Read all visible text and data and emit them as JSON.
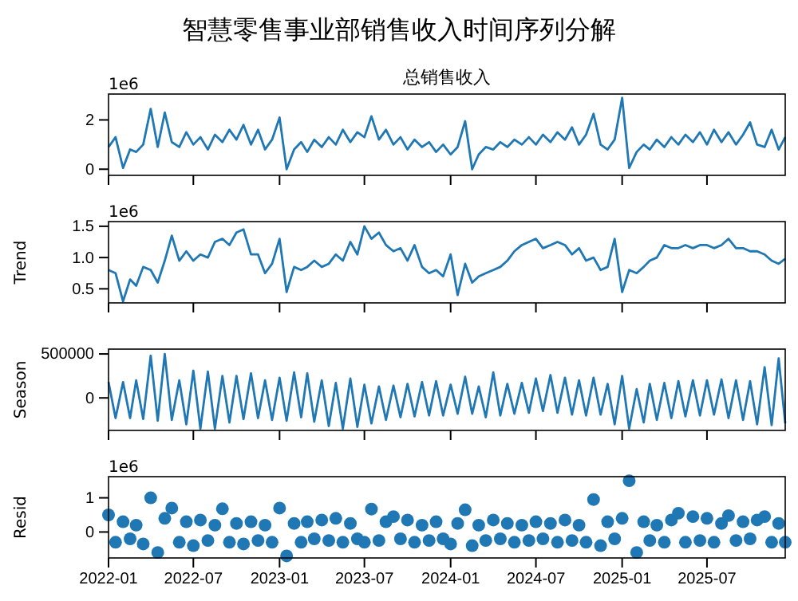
{
  "chart_data": [
    {
      "type": "line",
      "title": "智慧零售事业部销售收入时间序列分解",
      "subtitle": "总销售收入",
      "annotations": [
        "1e6"
      ],
      "color": "#1f77b4",
      "tick_labels": "y",
      "xlim": [
        "2022-01-01",
        "2025-12-15"
      ],
      "xticks": [
        "2022-01",
        "2022-07",
        "2023-01",
        "2023-07",
        "2024-01",
        "2024-07",
        "2025-01",
        "2025-07"
      ],
      "ylim": [
        -0.25,
        3.05
      ],
      "yticks": [
        0,
        2
      ],
      "x": [
        "2022-01-01",
        "2022-01-16",
        "2022-02-01",
        "2022-02-16",
        "2022-03-01",
        "2022-03-16",
        "2022-04-01",
        "2022-04-16",
        "2022-05-01",
        "2022-05-16",
        "2022-06-01",
        "2022-06-16",
        "2022-07-01",
        "2022-07-16",
        "2022-08-01",
        "2022-08-16",
        "2022-09-01",
        "2022-09-16",
        "2022-10-01",
        "2022-10-16",
        "2022-11-01",
        "2022-11-16",
        "2022-12-01",
        "2022-12-16",
        "2023-01-01",
        "2023-01-16",
        "2023-02-01",
        "2023-02-16",
        "2023-03-01",
        "2023-03-16",
        "2023-04-01",
        "2023-04-16",
        "2023-05-01",
        "2023-05-16",
        "2023-06-01",
        "2023-06-16",
        "2023-07-01",
        "2023-07-16",
        "2023-08-01",
        "2023-08-16",
        "2023-09-01",
        "2023-09-16",
        "2023-10-01",
        "2023-10-16",
        "2023-11-01",
        "2023-11-16",
        "2023-12-01",
        "2023-12-16",
        "2024-01-01",
        "2024-01-16",
        "2024-02-01",
        "2024-02-16",
        "2024-03-01",
        "2024-03-16",
        "2024-04-01",
        "2024-04-16",
        "2024-05-01",
        "2024-05-16",
        "2024-06-01",
        "2024-06-16",
        "2024-07-01",
        "2024-07-16",
        "2024-08-01",
        "2024-08-16",
        "2024-09-01",
        "2024-09-16",
        "2024-10-01",
        "2024-10-16",
        "2024-11-01",
        "2024-11-16",
        "2024-12-01",
        "2024-12-16",
        "2025-01-01",
        "2025-01-16",
        "2025-02-01",
        "2025-02-16",
        "2025-03-01",
        "2025-03-16",
        "2025-04-01",
        "2025-04-16",
        "2025-05-01",
        "2025-05-16",
        "2025-06-01",
        "2025-06-16",
        "2025-07-01",
        "2025-07-16",
        "2025-08-01",
        "2025-08-16",
        "2025-09-01",
        "2025-09-16",
        "2025-10-01",
        "2025-10-16",
        "2025-11-01",
        "2025-11-16",
        "2025-12-01",
        "2025-12-15"
      ],
      "values": [
        0.9,
        1.3,
        0.05,
        0.8,
        0.7,
        1.0,
        2.45,
        0.9,
        2.3,
        1.1,
        0.9,
        1.5,
        1.0,
        1.3,
        0.8,
        1.4,
        1.1,
        1.6,
        1.2,
        1.8,
        1.0,
        1.6,
        0.8,
        1.2,
        2.1,
        0,
        0.8,
        1.1,
        0.7,
        1.2,
        0.9,
        1.3,
        1.0,
        1.6,
        1.1,
        1.5,
        1.3,
        2.15,
        1.2,
        1.6,
        1.0,
        1.3,
        0.8,
        1.2,
        0.9,
        1.1,
        0.7,
        1.0,
        0.6,
        0.9,
        1.95,
        0,
        0.6,
        0.9,
        0.8,
        1.1,
        0.9,
        1.2,
        1.0,
        1.3,
        1.0,
        1.4,
        1.1,
        1.5,
        1.2,
        1.7,
        1.0,
        1.4,
        2.25,
        1.0,
        0.8,
        1.2,
        2.9,
        0.05,
        0.7,
        1.0,
        0.8,
        1.2,
        0.9,
        1.3,
        1.0,
        1.4,
        1.1,
        1.5,
        1.0,
        1.6,
        1.1,
        1.5,
        1.0,
        1.4,
        1.9,
        1.0,
        0.9,
        1.6,
        0.8,
        1.3
      ]
    },
    {
      "type": "line",
      "ylabel": "Trend",
      "annotations": [
        "1e6"
      ],
      "color": "#1f77b4",
      "tick_labels": "y",
      "xlim": [
        "2022-01-01",
        "2025-12-15"
      ],
      "xticks": [
        "2022-01",
        "2022-07",
        "2023-01",
        "2023-07",
        "2024-01",
        "2024-07",
        "2025-01",
        "2025-07"
      ],
      "ylim": [
        0.275,
        1.575
      ],
      "yticks": [
        0.5,
        {
          "value": 1,
          "label": "1.0"
        },
        1.5
      ],
      "x": [
        "2022-01-01",
        "2022-01-16",
        "2022-02-01",
        "2022-02-16",
        "2022-03-01",
        "2022-03-16",
        "2022-04-01",
        "2022-04-16",
        "2022-05-01",
        "2022-05-16",
        "2022-06-01",
        "2022-06-16",
        "2022-07-01",
        "2022-07-16",
        "2022-08-01",
        "2022-08-16",
        "2022-09-01",
        "2022-09-16",
        "2022-10-01",
        "2022-10-16",
        "2022-11-01",
        "2022-11-16",
        "2022-12-01",
        "2022-12-16",
        "2023-01-01",
        "2023-01-16",
        "2023-02-01",
        "2023-02-16",
        "2023-03-01",
        "2023-03-16",
        "2023-04-01",
        "2023-04-16",
        "2023-05-01",
        "2023-05-16",
        "2023-06-01",
        "2023-06-16",
        "2023-07-01",
        "2023-07-16",
        "2023-08-01",
        "2023-08-16",
        "2023-09-01",
        "2023-09-16",
        "2023-10-01",
        "2023-10-16",
        "2023-11-01",
        "2023-11-16",
        "2023-12-01",
        "2023-12-16",
        "2024-01-01",
        "2024-01-16",
        "2024-02-01",
        "2024-02-16",
        "2024-03-01",
        "2024-03-16",
        "2024-04-01",
        "2024-04-16",
        "2024-05-01",
        "2024-05-16",
        "2024-06-01",
        "2024-06-16",
        "2024-07-01",
        "2024-07-16",
        "2024-08-01",
        "2024-08-16",
        "2024-09-01",
        "2024-09-16",
        "2024-10-01",
        "2024-10-16",
        "2024-11-01",
        "2024-11-16",
        "2024-12-01",
        "2024-12-16",
        "2025-01-01",
        "2025-01-16",
        "2025-02-01",
        "2025-02-16",
        "2025-03-01",
        "2025-03-16",
        "2025-04-01",
        "2025-04-16",
        "2025-05-01",
        "2025-05-16",
        "2025-06-01",
        "2025-06-16",
        "2025-07-01",
        "2025-07-16",
        "2025-08-01",
        "2025-08-16",
        "2025-09-01",
        "2025-09-16",
        "2025-10-01",
        "2025-10-16",
        "2025-11-01",
        "2025-11-16",
        "2025-12-01",
        "2025-12-15"
      ],
      "values": [
        0.8,
        0.75,
        0.3,
        0.65,
        0.55,
        0.85,
        0.8,
        0.6,
        0.95,
        1.35,
        0.95,
        1.1,
        0.95,
        1.05,
        1.0,
        1.25,
        1.3,
        1.2,
        1.4,
        1.45,
        1.05,
        1.05,
        0.75,
        0.9,
        1.3,
        0.45,
        0.85,
        0.8,
        0.85,
        0.95,
        0.85,
        0.9,
        1.05,
        0.95,
        1.25,
        1.05,
        1.5,
        1.3,
        1.4,
        1.2,
        1.1,
        1.15,
        0.95,
        1.2,
        0.85,
        0.75,
        0.8,
        0.7,
        1.05,
        0.4,
        0.9,
        0.6,
        0.7,
        0.75,
        0.8,
        0.85,
        0.95,
        1.1,
        1.2,
        1.25,
        1.3,
        1.15,
        1.2,
        1.25,
        1.2,
        1.05,
        1.15,
        0.95,
        1.0,
        0.8,
        0.85,
        1.3,
        0.45,
        0.8,
        0.75,
        0.85,
        0.95,
        1.0,
        1.2,
        1.15,
        1.15,
        1.2,
        1.15,
        1.2,
        1.2,
        1.15,
        1.2,
        1.3,
        1.15,
        1.15,
        1.1,
        1.1,
        1.05,
        0.95,
        0.9,
        0.98
      ]
    },
    {
      "type": "line",
      "ylabel": "Season",
      "color": "#1f77b4",
      "tick_labels": "y",
      "xlim": [
        "2022-01-01",
        "2025-12-15"
      ],
      "xticks": [
        "2022-01",
        "2022-07",
        "2023-01",
        "2023-07",
        "2024-01",
        "2024-07",
        "2025-01",
        "2025-07"
      ],
      "ylim": [
        -370000,
        555000
      ],
      "yticks": [
        0,
        500000
      ],
      "x": [
        "2022-01-01",
        "2022-01-16",
        "2022-02-01",
        "2022-02-16",
        "2022-03-01",
        "2022-03-16",
        "2022-04-01",
        "2022-04-16",
        "2022-05-01",
        "2022-05-16",
        "2022-06-01",
        "2022-06-16",
        "2022-07-01",
        "2022-07-16",
        "2022-08-01",
        "2022-08-16",
        "2022-09-01",
        "2022-09-16",
        "2022-10-01",
        "2022-10-16",
        "2022-11-01",
        "2022-11-16",
        "2022-12-01",
        "2022-12-16",
        "2023-01-01",
        "2023-01-16",
        "2023-02-01",
        "2023-02-16",
        "2023-03-01",
        "2023-03-16",
        "2023-04-01",
        "2023-04-16",
        "2023-05-01",
        "2023-05-16",
        "2023-06-01",
        "2023-06-16",
        "2023-07-01",
        "2023-07-16",
        "2023-08-01",
        "2023-08-16",
        "2023-09-01",
        "2023-09-16",
        "2023-10-01",
        "2023-10-16",
        "2023-11-01",
        "2023-11-16",
        "2023-12-01",
        "2023-12-16",
        "2024-01-01",
        "2024-01-16",
        "2024-02-01",
        "2024-02-16",
        "2024-03-01",
        "2024-03-16",
        "2024-04-01",
        "2024-04-16",
        "2024-05-01",
        "2024-05-16",
        "2024-06-01",
        "2024-06-16",
        "2024-07-01",
        "2024-07-16",
        "2024-08-01",
        "2024-08-16",
        "2024-09-01",
        "2024-09-16",
        "2024-10-01",
        "2024-10-16",
        "2024-11-01",
        "2024-11-16",
        "2024-12-01",
        "2024-12-16",
        "2025-01-01",
        "2025-01-16",
        "2025-02-01",
        "2025-02-16",
        "2025-03-01",
        "2025-03-16",
        "2025-04-01",
        "2025-04-16",
        "2025-05-01",
        "2025-05-16",
        "2025-06-01",
        "2025-06-16",
        "2025-07-01",
        "2025-07-16",
        "2025-08-01",
        "2025-08-16",
        "2025-09-01",
        "2025-09-16",
        "2025-10-01",
        "2025-10-16",
        "2025-11-01",
        "2025-11-16",
        "2025-12-01",
        "2025-12-15"
      ],
      "values": [
        180000,
        -230000,
        180000,
        -230000,
        200000,
        -240000,
        480000,
        -260000,
        500000,
        -250000,
        200000,
        -300000,
        310000,
        -350000,
        300000,
        -350000,
        250000,
        -280000,
        250000,
        -240000,
        280000,
        -230000,
        200000,
        -250000,
        230000,
        -260000,
        290000,
        -220000,
        280000,
        -270000,
        200000,
        -320000,
        170000,
        -350000,
        220000,
        -330000,
        150000,
        -290000,
        130000,
        -250000,
        140000,
        -220000,
        160000,
        -210000,
        180000,
        -200000,
        190000,
        -200000,
        150000,
        -180000,
        240000,
        -180000,
        130000,
        -220000,
        290000,
        -200000,
        160000,
        -180000,
        170000,
        -170000,
        220000,
        -150000,
        260000,
        -170000,
        230000,
        -190000,
        200000,
        -200000,
        230000,
        -190000,
        160000,
        -300000,
        250000,
        -350000,
        100000,
        -280000,
        160000,
        -250000,
        170000,
        -230000,
        190000,
        -210000,
        200000,
        -200000,
        200000,
        -190000,
        210000,
        -230000,
        200000,
        -250000,
        190000,
        -300000,
        350000,
        -310000,
        450000,
        -290000
      ]
    },
    {
      "type": "scatter",
      "ylabel": "Resid",
      "annotations": [
        "1e6"
      ],
      "color": "#1f77b4",
      "marker": "circle",
      "xlim": [
        "2022-01-01",
        "2025-12-15"
      ],
      "xticks": [
        "2022-01",
        "2022-07",
        "2023-01",
        "2023-07",
        "2024-01",
        "2024-07",
        "2025-01",
        "2025-07"
      ],
      "ylim": [
        -0.76,
        1.62
      ],
      "yticks": [
        0,
        1
      ],
      "x": [
        "2022-01-01",
        "2022-01-16",
        "2022-02-01",
        "2022-02-16",
        "2022-03-01",
        "2022-03-16",
        "2022-04-01",
        "2022-04-16",
        "2022-05-01",
        "2022-05-16",
        "2022-06-01",
        "2022-06-16",
        "2022-07-01",
        "2022-07-16",
        "2022-08-01",
        "2022-08-16",
        "2022-09-01",
        "2022-09-16",
        "2022-10-01",
        "2022-10-16",
        "2022-11-01",
        "2022-11-16",
        "2022-12-01",
        "2022-12-16",
        "2023-01-01",
        "2023-01-16",
        "2023-02-01",
        "2023-02-16",
        "2023-03-01",
        "2023-03-16",
        "2023-04-01",
        "2023-04-16",
        "2023-05-01",
        "2023-05-16",
        "2023-06-01",
        "2023-06-16",
        "2023-07-01",
        "2023-07-16",
        "2023-08-01",
        "2023-08-16",
        "2023-09-01",
        "2023-09-16",
        "2023-10-01",
        "2023-10-16",
        "2023-11-01",
        "2023-11-16",
        "2023-12-01",
        "2023-12-16",
        "2024-01-01",
        "2024-01-16",
        "2024-02-01",
        "2024-02-16",
        "2024-03-01",
        "2024-03-16",
        "2024-04-01",
        "2024-04-16",
        "2024-05-01",
        "2024-05-16",
        "2024-06-01",
        "2024-06-16",
        "2024-07-01",
        "2024-07-16",
        "2024-08-01",
        "2024-08-16",
        "2024-09-01",
        "2024-09-16",
        "2024-10-01",
        "2024-10-16",
        "2024-11-01",
        "2024-11-16",
        "2024-12-01",
        "2024-12-16",
        "2025-01-01",
        "2025-01-16",
        "2025-02-01",
        "2025-02-16",
        "2025-03-01",
        "2025-03-16",
        "2025-04-01",
        "2025-04-16",
        "2025-05-01",
        "2025-05-16",
        "2025-06-01",
        "2025-06-16",
        "2025-07-01",
        "2025-07-16",
        "2025-08-01",
        "2025-08-16",
        "2025-09-01",
        "2025-09-16",
        "2025-10-01",
        "2025-10-16",
        "2025-11-01",
        "2025-11-16",
        "2025-12-01",
        "2025-12-15"
      ],
      "values": [
        0.5,
        -0.3,
        0.3,
        -0.2,
        0.2,
        -0.35,
        1.0,
        -0.6,
        0.4,
        0.7,
        -0.3,
        0.3,
        -0.4,
        0.35,
        -0.25,
        0.2,
        0.68,
        -0.3,
        0.25,
        -0.35,
        0.3,
        -0.25,
        0.2,
        -0.3,
        0.7,
        -0.7,
        0.25,
        -0.3,
        0.3,
        -0.2,
        0.35,
        -0.25,
        0.4,
        -0.3,
        0.25,
        -0.2,
        -0.3,
        0.67,
        -0.25,
        0.3,
        0.45,
        -0.2,
        0.35,
        -0.3,
        0.2,
        -0.25,
        0.3,
        -0.2,
        -0.35,
        0.25,
        0.65,
        -0.4,
        0.2,
        -0.25,
        0.35,
        -0.2,
        0.25,
        -0.3,
        0.2,
        -0.25,
        0.3,
        -0.2,
        0.25,
        -0.3,
        0.35,
        -0.25,
        0.2,
        -0.3,
        0.95,
        -0.4,
        0.3,
        -0.2,
        0.4,
        1.5,
        -0.6,
        0.3,
        -0.25,
        0.2,
        -0.3,
        0.35,
        0.55,
        -0.3,
        0.45,
        -0.25,
        0.4,
        -0.3,
        0.25,
        0.48,
        -0.25,
        0.3,
        -0.2,
        0.35,
        0.45,
        -0.3,
        0.25,
        -0.3
      ]
    }
  ]
}
